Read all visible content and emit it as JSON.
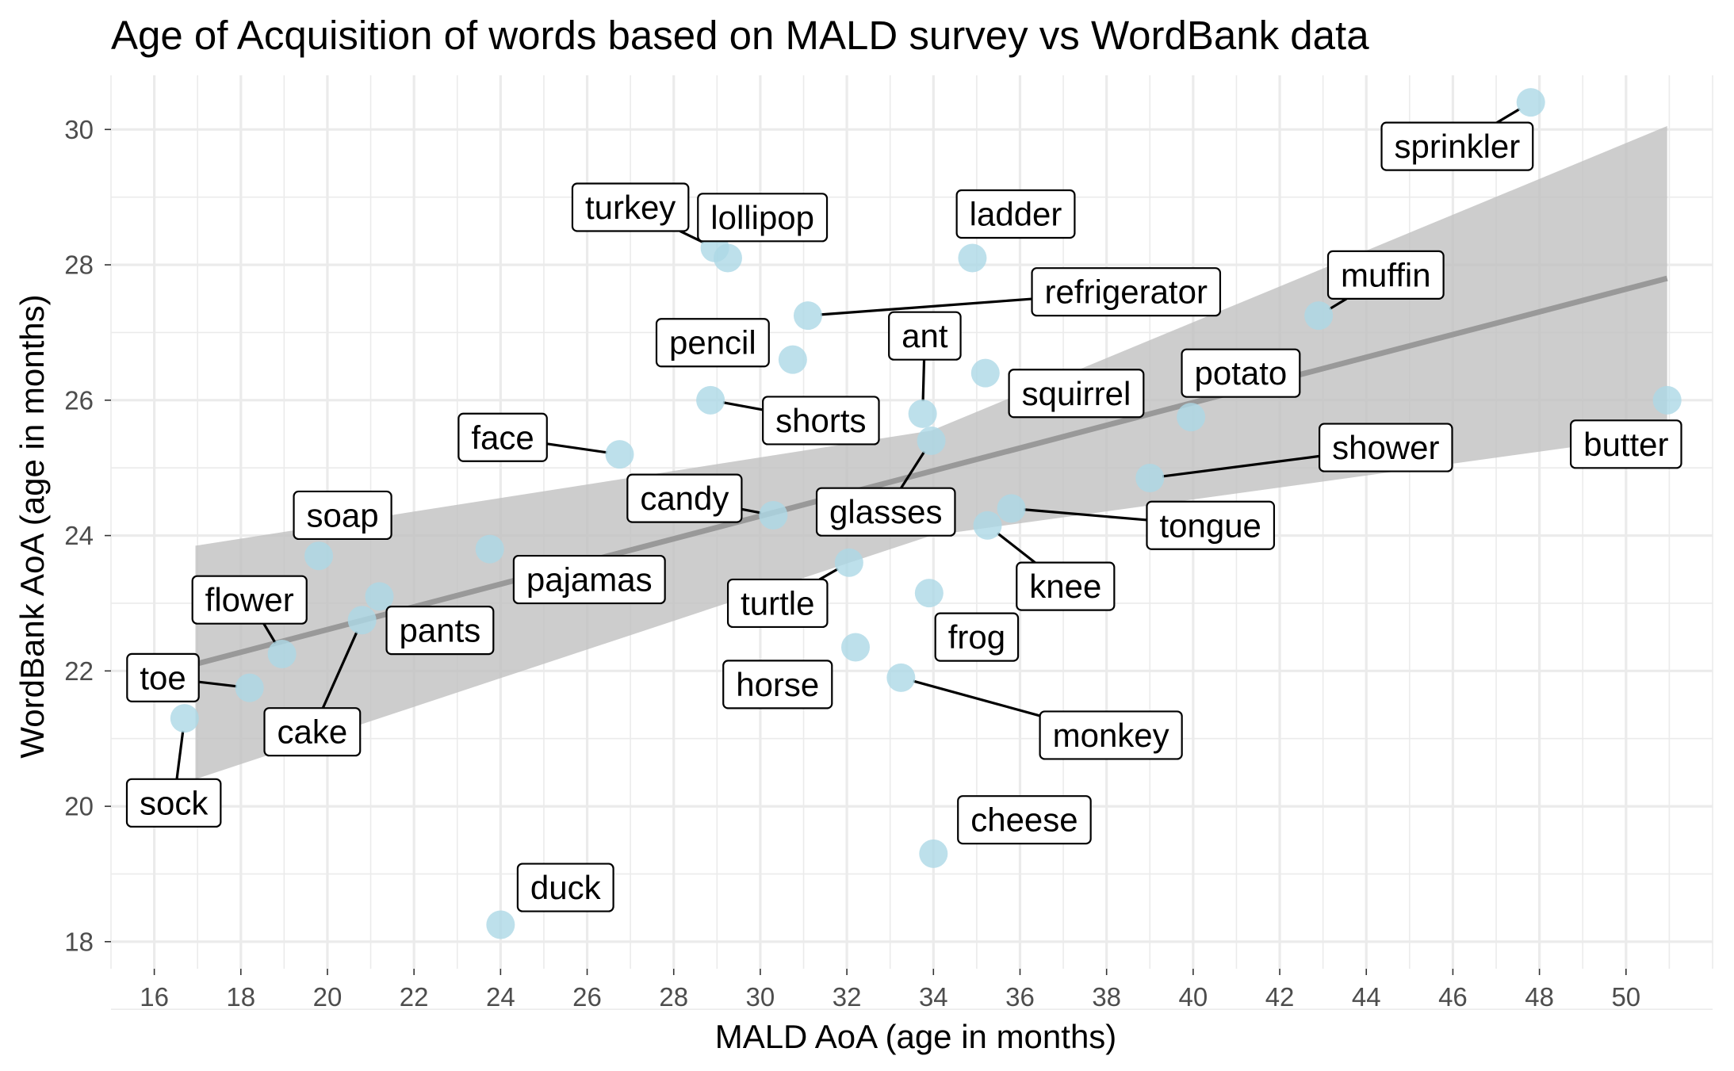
{
  "chart_data": {
    "type": "scatter",
    "title": "Age of Acquisition of words based on MALD survey vs WordBank data",
    "xlabel": "MALD AoA (age in months)",
    "ylabel": "WordBank AoA (age in months)",
    "xlim": [
      15,
      52
    ],
    "ylim": [
      17.6,
      30.8
    ],
    "x_ticks": [
      16,
      18,
      20,
      22,
      24,
      26,
      28,
      30,
      32,
      34,
      36,
      38,
      40,
      42,
      44,
      46,
      48,
      50
    ],
    "y_ticks": [
      18,
      20,
      22,
      24,
      26,
      28,
      30
    ],
    "grid": true,
    "legend": "none",
    "point_color": "#add8e6",
    "band_color": "#bfbfbf",
    "line_color": "#999999",
    "trend": {
      "method": "linear",
      "x_range": [
        16.95,
        50.95
      ],
      "y_start": 22.1,
      "y_end": 27.8,
      "band_lower": [
        20.4,
        25.5
      ],
      "band_upper": [
        23.85,
        30.05
      ],
      "band_knot_x": [
        16.95,
        33.95,
        50.95
      ],
      "band_knot_lower": [
        20.4,
        24.0,
        25.5
      ],
      "band_knot_upper": [
        23.85,
        25.55,
        30.05
      ]
    },
    "points": [
      {
        "word": "sprinkler",
        "x": 47.8,
        "y": 30.4,
        "lx": 46.1,
        "ly": 29.75
      },
      {
        "word": "turkey",
        "x": 28.95,
        "y": 28.25,
        "lx": 27.0,
        "ly": 28.85
      },
      {
        "word": "lollipop",
        "x": 29.25,
        "y": 28.1,
        "lx": 30.05,
        "ly": 28.7
      },
      {
        "word": "ladder",
        "x": 34.9,
        "y": 28.1,
        "lx": 35.9,
        "ly": 28.75
      },
      {
        "word": "refrigerator",
        "x": 31.1,
        "y": 27.25,
        "lx": 38.45,
        "ly": 27.6
      },
      {
        "word": "muffin",
        "x": 42.9,
        "y": 27.25,
        "lx": 44.45,
        "ly": 27.85
      },
      {
        "word": "pencil",
        "x": 30.75,
        "y": 26.6,
        "lx": 28.9,
        "ly": 26.85
      },
      {
        "word": "ant",
        "x": 33.75,
        "y": 25.8,
        "lx": 33.8,
        "ly": 26.95
      },
      {
        "word": "squirrel",
        "x": 35.2,
        "y": 26.4,
        "lx": 37.3,
        "ly": 26.1
      },
      {
        "word": "potato",
        "x": 39.95,
        "y": 25.75,
        "lx": 41.1,
        "ly": 26.4
      },
      {
        "word": "shorts",
        "x": 28.85,
        "y": 26.0,
        "lx": 31.4,
        "ly": 25.7
      },
      {
        "word": "butter",
        "x": 50.95,
        "y": 26.0,
        "lx": 50.0,
        "ly": 25.35
      },
      {
        "word": "face",
        "x": 26.75,
        "y": 25.2,
        "lx": 24.05,
        "ly": 25.45
      },
      {
        "word": "shower",
        "x": 39.0,
        "y": 24.85,
        "lx": 44.45,
        "ly": 25.3
      },
      {
        "word": "glasses",
        "x": 33.95,
        "y": 25.4,
        "lx": 32.9,
        "ly": 24.35
      },
      {
        "word": "candy",
        "x": 30.3,
        "y": 24.3,
        "lx": 28.25,
        "ly": 24.55
      },
      {
        "word": "tongue",
        "x": 35.8,
        "y": 24.4,
        "lx": 40.4,
        "ly": 24.15
      },
      {
        "word": "soap",
        "x": 19.8,
        "y": 23.7,
        "lx": 20.35,
        "ly": 24.3
      },
      {
        "word": "pajamas",
        "x": 23.75,
        "y": 23.8,
        "lx": 26.05,
        "ly": 23.35
      },
      {
        "word": "knee",
        "x": 35.25,
        "y": 24.15,
        "lx": 37.05,
        "ly": 23.25
      },
      {
        "word": "turtle",
        "x": 32.05,
        "y": 23.6,
        "lx": 30.4,
        "ly": 23.0
      },
      {
        "word": "frog",
        "x": 33.9,
        "y": 23.15,
        "lx": 35.0,
        "ly": 22.5
      },
      {
        "word": "flower",
        "x": 18.95,
        "y": 22.25,
        "lx": 18.2,
        "ly": 23.05
      },
      {
        "word": "pants",
        "x": 21.2,
        "y": 23.1,
        "lx": 22.6,
        "ly": 22.6
      },
      {
        "word": "cake",
        "x": 20.8,
        "y": 22.75,
        "lx": 19.65,
        "ly": 21.1
      },
      {
        "word": "toe",
        "x": 18.2,
        "y": 21.75,
        "lx": 16.2,
        "ly": 21.9
      },
      {
        "word": "horse",
        "x": 32.2,
        "y": 22.35,
        "lx": 30.4,
        "ly": 21.8
      },
      {
        "word": "monkey",
        "x": 33.25,
        "y": 21.9,
        "lx": 38.1,
        "ly": 21.05
      },
      {
        "word": "sock",
        "x": 16.7,
        "y": 21.3,
        "lx": 16.45,
        "ly": 20.05
      },
      {
        "word": "cheese",
        "x": 34.0,
        "y": 19.3,
        "lx": 36.1,
        "ly": 19.8
      },
      {
        "word": "duck",
        "x": 24.0,
        "y": 18.25,
        "lx": 25.5,
        "ly": 18.8
      }
    ]
  }
}
